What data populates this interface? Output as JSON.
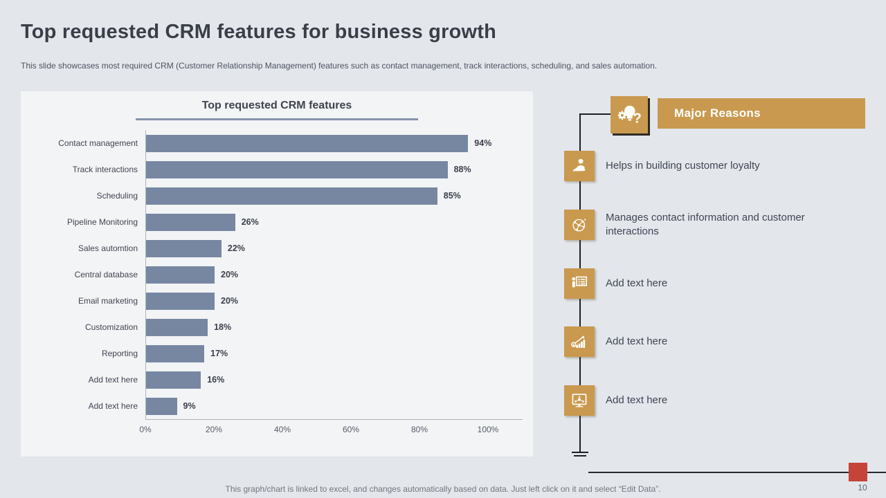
{
  "slide": {
    "title": "Top requested CRM features for business growth",
    "subtitle": "This slide showcases most required CRM (Customer Relationship Management) features such as contact management, track interactions, scheduling, and sales automation.",
    "footer_note": "This graph/chart is linked to excel, and changes automatically based on data. Just left click on it and select “Edit Data”.",
    "page_number": "10"
  },
  "chart_data": {
    "type": "bar",
    "orientation": "horizontal",
    "title": "Top requested CRM features",
    "categories": [
      "Contact management",
      "Track interactions",
      "Scheduling",
      "Pipeline Monitoring",
      "Sales automtion",
      "Central database",
      "Email marketing",
      "Customization",
      "Reporting",
      "Add text here",
      "Add text here"
    ],
    "values": [
      94,
      88,
      85,
      26,
      22,
      20,
      20,
      18,
      17,
      16,
      9
    ],
    "value_labels": [
      "94%",
      "88%",
      "85%",
      "26%",
      "22%",
      "20%",
      "20%",
      "18%",
      "17%",
      "16%",
      "9%"
    ],
    "xlabel": "",
    "ylabel": "",
    "xlim": [
      0,
      100
    ],
    "x_ticks": [
      "0%",
      "20%",
      "40%",
      "60%",
      "80%",
      "100%"
    ],
    "grid": false,
    "legend": "none",
    "bar_color": "#7787A2"
  },
  "reasons": {
    "header": {
      "label": "Major Reasons",
      "icon": "idea-question-icon"
    },
    "items": [
      {
        "icon": "customer-loyalty-icon",
        "text": "Helps in building customer loyalty"
      },
      {
        "icon": "contact-network-icon",
        "text": "Manages contact information and customer interactions"
      },
      {
        "icon": "presentation-list-icon",
        "text": "Add text here"
      },
      {
        "icon": "growth-chart-icon",
        "text": "Add text here"
      },
      {
        "icon": "org-monitor-icon",
        "text": "Add text here"
      }
    ],
    "accent_color": "#C9994F"
  },
  "colors": {
    "slide_background": "#E3E7EC",
    "panel_background": "#F3F4F6",
    "bar": "#7787A2",
    "accent_orange": "#C9994F",
    "accent_red": "#C44538",
    "title_text": "#3A3E47",
    "underline": "#8593AD"
  }
}
